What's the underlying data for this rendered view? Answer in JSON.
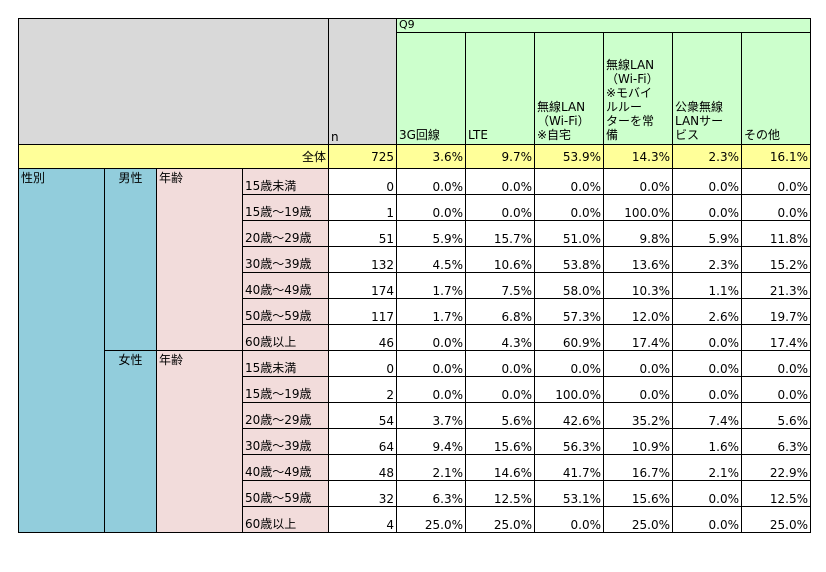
{
  "table": {
    "q9_label": "Q9",
    "n_label": "n",
    "columns": [
      "3G回線",
      "LTE",
      "無線LAN\n（Wi-Fi）\n※自宅",
      "無線LAN\n（Wi-Fi）\n※モバイ\nルルー\nターを常\n備",
      "公衆無線\nLANサー\nビス",
      "その他"
    ],
    "total": {
      "label": "全体",
      "n": "725",
      "values": [
        "3.6%",
        "9.7%",
        "53.9%",
        "14.3%",
        "2.3%",
        "16.1%"
      ]
    },
    "dim_label": "性別",
    "age_label": "年齢",
    "groups": [
      {
        "label": "男性",
        "rows": [
          {
            "age": "15歳未満",
            "n": "0",
            "values": [
              "0.0%",
              "0.0%",
              "0.0%",
              "0.0%",
              "0.0%",
              "0.0%"
            ]
          },
          {
            "age": "15歳～19歳",
            "n": "1",
            "values": [
              "0.0%",
              "0.0%",
              "0.0%",
              "100.0%",
              "0.0%",
              "0.0%"
            ]
          },
          {
            "age": "20歳～29歳",
            "n": "51",
            "values": [
              "5.9%",
              "15.7%",
              "51.0%",
              "9.8%",
              "5.9%",
              "11.8%"
            ]
          },
          {
            "age": "30歳～39歳",
            "n": "132",
            "values": [
              "4.5%",
              "10.6%",
              "53.8%",
              "13.6%",
              "2.3%",
              "15.2%"
            ]
          },
          {
            "age": "40歳～49歳",
            "n": "174",
            "values": [
              "1.7%",
              "7.5%",
              "58.0%",
              "10.3%",
              "1.1%",
              "21.3%"
            ]
          },
          {
            "age": "50歳～59歳",
            "n": "117",
            "values": [
              "1.7%",
              "6.8%",
              "57.3%",
              "12.0%",
              "2.6%",
              "19.7%"
            ]
          },
          {
            "age": "60歳以上",
            "n": "46",
            "values": [
              "0.0%",
              "4.3%",
              "60.9%",
              "17.4%",
              "0.0%",
              "17.4%"
            ]
          }
        ]
      },
      {
        "label": "女性",
        "rows": [
          {
            "age": "15歳未満",
            "n": "0",
            "values": [
              "0.0%",
              "0.0%",
              "0.0%",
              "0.0%",
              "0.0%",
              "0.0%"
            ]
          },
          {
            "age": "15歳～19歳",
            "n": "2",
            "values": [
              "0.0%",
              "0.0%",
              "100.0%",
              "0.0%",
              "0.0%",
              "0.0%"
            ]
          },
          {
            "age": "20歳～29歳",
            "n": "54",
            "values": [
              "3.7%",
              "5.6%",
              "42.6%",
              "35.2%",
              "7.4%",
              "5.6%"
            ]
          },
          {
            "age": "30歳～39歳",
            "n": "64",
            "values": [
              "9.4%",
              "15.6%",
              "56.3%",
              "10.9%",
              "1.6%",
              "6.3%"
            ]
          },
          {
            "age": "40歳～49歳",
            "n": "48",
            "values": [
              "2.1%",
              "14.6%",
              "41.7%",
              "16.7%",
              "2.1%",
              "22.9%"
            ]
          },
          {
            "age": "50歳～59歳",
            "n": "32",
            "values": [
              "6.3%",
              "12.5%",
              "53.1%",
              "15.6%",
              "0.0%",
              "12.5%"
            ]
          },
          {
            "age": "60歳以上",
            "n": "4",
            "values": [
              "25.0%",
              "25.0%",
              "0.0%",
              "25.0%",
              "0.0%",
              "25.0%"
            ]
          }
        ]
      }
    ]
  }
}
